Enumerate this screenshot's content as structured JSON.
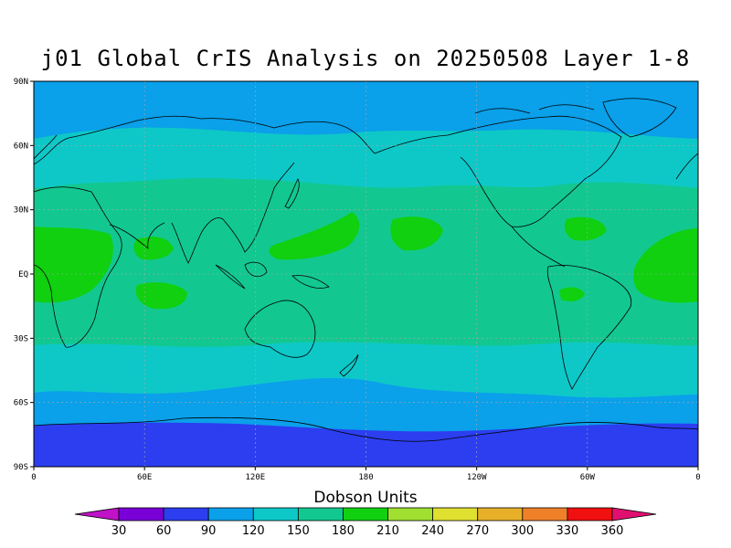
{
  "title": "j01 Global CrIS Analysis on 20250508 Layer 1-8",
  "lat_labels": [
    "90N",
    "60N",
    "30N",
    "EQ",
    "30S",
    "60S",
    "90S"
  ],
  "lon_labels": [
    "0",
    "60E",
    "120E",
    "180",
    "120W",
    "60W",
    "0"
  ],
  "colorbar": {
    "title": "Dobson Units",
    "ticks": [
      "30",
      "60",
      "90",
      "120",
      "150",
      "180",
      "210",
      "240",
      "270",
      "300",
      "330",
      "360"
    ],
    "colors": [
      "#c012c8",
      "#7a00d8",
      "#2c3ef0",
      "#0aa0ea",
      "#0ec8c8",
      "#12c890",
      "#10d010",
      "#a0e030",
      "#e0e030",
      "#e8b028",
      "#f08028",
      "#f01010",
      "#e01070"
    ]
  },
  "field_colors": {
    "band_60_90": "#2c3ef0",
    "band_90_120": "#0aa0ea",
    "band_120_150": "#0ec8c8",
    "band_150_180": "#12c890",
    "band_180_210": "#10d010"
  }
}
